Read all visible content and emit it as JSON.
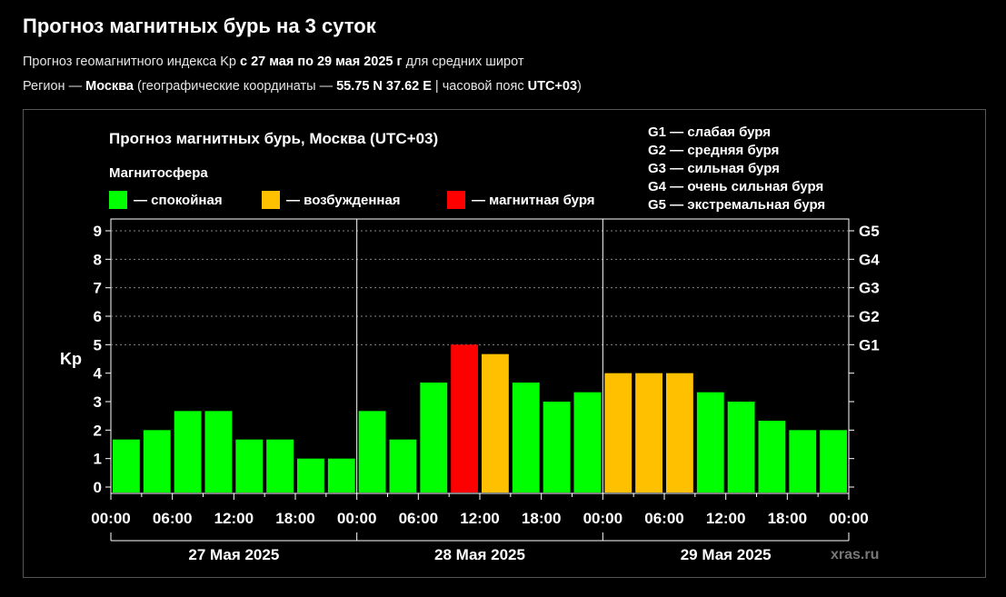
{
  "header": {
    "title": "Прогноз магнитных бурь на 3 суток",
    "sub1_a": "Прогноз геомагнитного индекса Kp ",
    "sub1_b": "с 27 мая по 29 мая 2025 г",
    "sub1_c": " для средних широт",
    "sub2_a": "Регион — ",
    "sub2_b": "Москва",
    "sub2_c": " (географические координаты — ",
    "sub2_d": "55.75 N 37.62 E",
    "sub2_e": " | часовой пояс ",
    "sub2_f": "UTC+03",
    "sub2_g": ")"
  },
  "colors": {
    "calm": "#00ff00",
    "excited": "#ffc000",
    "storm": "#ff0000"
  },
  "chart_data": {
    "type": "bar",
    "title": "Прогноз магнитных бурь, Москва (UTC+03)",
    "ylabel": "Kp",
    "ylim": [
      0,
      9
    ],
    "yticks": [
      "0",
      "1",
      "2",
      "3",
      "4",
      "5",
      "6",
      "7",
      "8",
      "9"
    ],
    "gscale": [
      {
        "kp": 5,
        "label": "G1"
      },
      {
        "kp": 6,
        "label": "G2"
      },
      {
        "kp": 7,
        "label": "G3"
      },
      {
        "kp": 8,
        "label": "G4"
      },
      {
        "kp": 9,
        "label": "G5"
      }
    ],
    "xticks": [
      "00:00",
      "06:00",
      "12:00",
      "18:00",
      "00:00",
      "06:00",
      "12:00",
      "18:00",
      "00:00",
      "06:00",
      "12:00",
      "18:00",
      "00:00"
    ],
    "days": [
      "27 Мая 2025",
      "28 Мая 2025",
      "29 Мая 2025"
    ],
    "values": [
      1.67,
      2,
      2.67,
      2.67,
      1.67,
      1.67,
      1,
      1,
      2.67,
      1.67,
      3.67,
      5,
      4.67,
      3.67,
      3,
      3.33,
      4,
      4,
      4,
      3.33,
      3,
      2.33,
      2,
      2
    ],
    "legend_title": "Магнитосфера",
    "legend": [
      {
        "key": "calm",
        "label": "— спокойная"
      },
      {
        "key": "excited",
        "label": "— возбужденная"
      },
      {
        "key": "storm",
        "label": "— магнитная буря"
      }
    ],
    "glegend": [
      "G1 — слабая буря",
      "G2 — средняя буря",
      "G3 — сильная буря",
      "G4 — очень сильная буря",
      "G5 — экстремальная буря"
    ],
    "watermark": "xras.ru"
  }
}
